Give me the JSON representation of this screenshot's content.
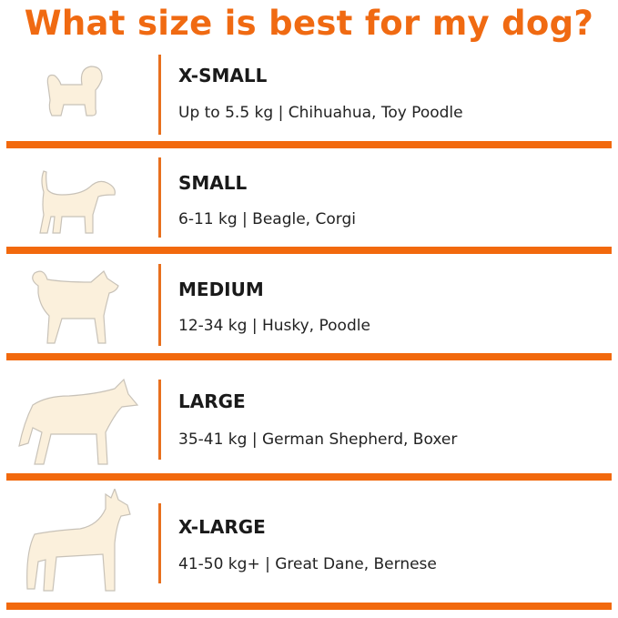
{
  "title": "What size is best for my dog?",
  "accent_color": "#f06a12",
  "sizes": [
    {
      "label": "X-SMALL",
      "description": "Up to  5.5 kg | Chihuahua, Toy Poodle",
      "icon": "small-fluffy-dog-icon"
    },
    {
      "label": "SMALL",
      "description": "6-11 kg | Beagle, Corgi",
      "icon": "beagle-icon"
    },
    {
      "label": "MEDIUM",
      "description": "12-34 kg | Husky, Poodle",
      "icon": "husky-icon"
    },
    {
      "label": "LARGE",
      "description": "35-41 kg | German Shepherd, Boxer",
      "icon": "german-shepherd-icon"
    },
    {
      "label": "X-LARGE",
      "description": "41-50 kg+ | Great Dane, Bernese",
      "icon": "great-dane-icon"
    }
  ]
}
